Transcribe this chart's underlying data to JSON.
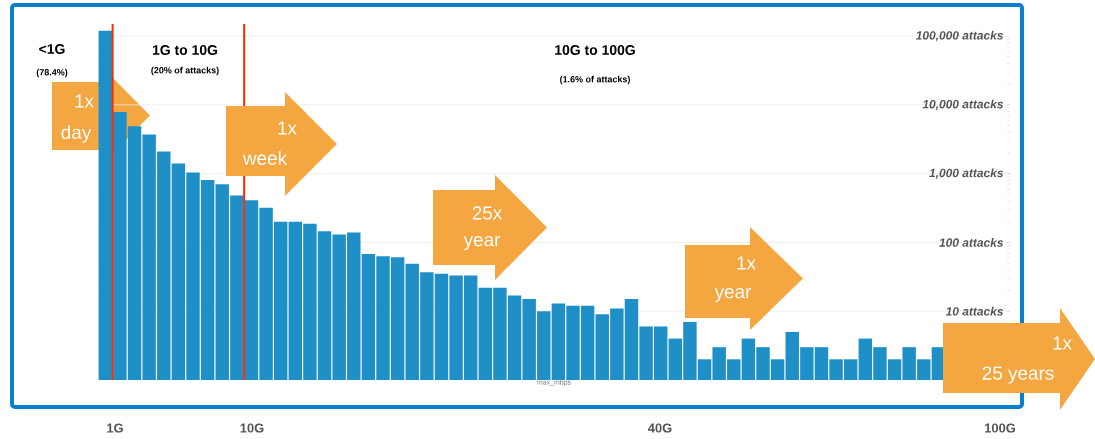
{
  "chart_data": {
    "type": "bar",
    "categories": [
      null,
      null,
      null,
      null,
      null,
      null,
      null,
      null,
      null,
      null,
      null,
      null,
      null,
      null,
      null,
      null,
      null,
      null,
      null,
      null,
      null,
      null,
      null,
      null,
      null,
      null,
      null,
      null,
      null,
      null,
      null,
      null,
      null,
      null,
      null,
      null,
      null,
      null,
      null,
      null,
      null,
      null,
      null,
      null,
      null,
      null,
      null,
      null,
      null,
      null,
      null,
      null,
      null,
      null,
      null,
      null,
      null,
      null,
      null,
      null,
      null,
      null
    ],
    "values": [
      120000,
      7900,
      4900,
      3700,
      2100,
      1400,
      1040,
      810,
      700,
      480,
      410,
      320,
      200,
      200,
      187,
      146,
      130,
      140,
      68,
      63,
      61,
      49,
      37,
      35,
      33,
      33,
      22,
      22,
      17,
      15,
      10,
      13,
      12,
      12,
      9,
      11,
      15,
      6,
      6,
      4,
      7,
      2,
      3,
      2,
      4,
      3,
      2,
      5,
      3,
      3,
      2,
      2,
      4,
      3,
      2,
      3,
      2,
      3,
      null,
      null,
      null,
      null
    ],
    "color": "#1f8fc8",
    "log": "y",
    "ylim": [
      1,
      150000
    ],
    "yticks": [
      {
        "value": 10,
        "label": "10 attacks"
      },
      {
        "value": 100,
        "label": "100 attacks"
      },
      {
        "value": 1000,
        "label": "1,000 attacks"
      },
      {
        "value": 10000,
        "label": "10,000 attacks"
      },
      {
        "value": 100000,
        "label": "100,000 attacks"
      }
    ],
    "grid": "y",
    "tick_labels": "y",
    "xlabel": "max_mbps",
    "annotations": [
      "<1G",
      "(78.4%)",
      "1G to 10G",
      "(20% of attacks)",
      "10G to 100G",
      "(1.6% of attacks)",
      "1x",
      "day",
      "1x",
      "week",
      "25x",
      "year",
      "1x",
      "year",
      "1x",
      "25 years",
      "1G",
      "10G",
      "40G",
      "100G"
    ]
  }
}
